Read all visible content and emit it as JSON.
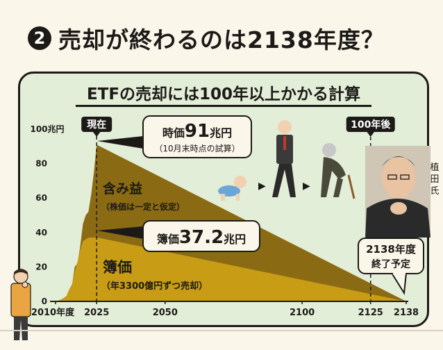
{
  "headline": {
    "badge": "2",
    "text": "売却が終わるのは2138年度？"
  },
  "chart_data": {
    "type": "area",
    "title": "ETFの売却には100年以上かかる計算",
    "ylim": [
      0,
      100
    ],
    "xlim": [
      2010,
      2138
    ],
    "y_ticks": [
      {
        "value": 0,
        "label": "0"
      },
      {
        "value": 20,
        "label": "20"
      },
      {
        "value": 40,
        "label": "40"
      },
      {
        "value": 60,
        "label": "60"
      },
      {
        "value": 80,
        "label": "80"
      },
      {
        "value": 100,
        "label": "100兆円"
      }
    ],
    "x_ticks": [
      {
        "value": 2010,
        "label": "2010年度"
      },
      {
        "value": 2025,
        "label": "2025"
      },
      {
        "value": 2050,
        "label": "2050"
      },
      {
        "value": 2100,
        "label": "2100"
      },
      {
        "value": 2125,
        "label": "2125"
      },
      {
        "value": 2138,
        "label": "2138"
      }
    ],
    "series": [
      {
        "name": "含み益",
        "color": "#8b6a14",
        "values": [
          [
            2010,
            0
          ],
          [
            2012,
            1
          ],
          [
            2014,
            3
          ],
          [
            2015,
            7
          ],
          [
            2016,
            9
          ],
          [
            2017,
            20
          ],
          [
            2018,
            22
          ],
          [
            2019,
            32
          ],
          [
            2020,
            45
          ],
          [
            2021,
            50
          ],
          [
            2022,
            52
          ],
          [
            2023,
            62
          ],
          [
            2024,
            75
          ],
          [
            2025,
            91
          ],
          [
            2138,
            0
          ]
        ]
      },
      {
        "name": "簿価",
        "color": "#c89c15",
        "values": [
          [
            2010,
            0
          ],
          [
            2012,
            1
          ],
          [
            2014,
            3
          ],
          [
            2015,
            7
          ],
          [
            2016,
            10
          ],
          [
            2017,
            17
          ],
          [
            2018,
            23
          ],
          [
            2019,
            30
          ],
          [
            2020,
            35
          ],
          [
            2021,
            36
          ],
          [
            2022,
            37
          ],
          [
            2025,
            37.2
          ],
          [
            2138,
            0
          ]
        ]
      }
    ],
    "annotations": {
      "now_label": "現在",
      "future_label": "100年後",
      "market_value": {
        "prefix": "時価",
        "value": "91",
        "unit": "兆円",
        "note": "（10月末時点の試算）"
      },
      "unrealized_gain": {
        "label": "含み益",
        "note": "（株価は一定と仮定）"
      },
      "book_value": {
        "prefix": "簿価",
        "value": "37.2",
        "unit": "兆円"
      },
      "book_series": {
        "label": "簿価",
        "note": "（年3300億円ずつ売却）"
      },
      "end_label_1": "2138年度",
      "end_label_2": "終了予定",
      "person_name": "植田氏",
      "arrow_glyph": "▶"
    }
  }
}
